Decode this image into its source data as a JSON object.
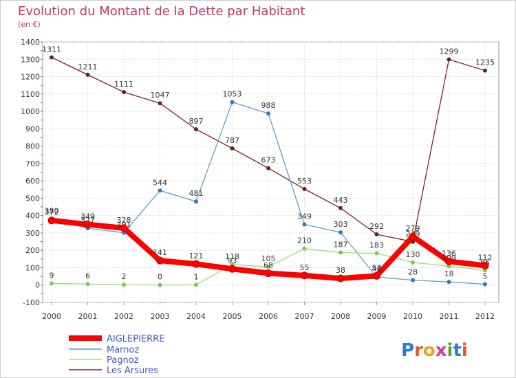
{
  "chart_data": {
    "type": "line",
    "title": "Evolution du Montant de la Dette par Habitant",
    "subtitle": "(en €)",
    "xlabel": "",
    "ylabel": "",
    "x": [
      "2000",
      "2001",
      "2002",
      "2003",
      "2004",
      "2005",
      "2006",
      "2007",
      "2008",
      "2009",
      "2010",
      "2011",
      "2012"
    ],
    "ylim": [
      -100,
      1400
    ],
    "yticks": [
      -100,
      0,
      100,
      200,
      300,
      400,
      500,
      600,
      700,
      800,
      900,
      1000,
      1100,
      1200,
      1300,
      1400
    ],
    "grid": true,
    "legend_position": "bottom-left",
    "series": [
      {
        "name": "AIGLEPIERRE",
        "color": "#ff0000",
        "values": [
          372,
          349,
          328,
          141,
          121,
          93,
          68,
          55,
          38,
          53,
          279,
          136,
          112
        ]
      },
      {
        "name": "Marnoz",
        "color": "#6699cc",
        "values": [
          380,
          327,
          301,
          544,
          481,
          1053,
          988,
          349,
          303,
          46,
          28,
          18,
          5
        ]
      },
      {
        "name": "Pagnoz",
        "color": "#99dd77",
        "values": [
          9,
          6,
          2,
          0,
          1,
          118,
          105,
          210,
          187,
          183,
          130,
          109,
          85
        ]
      },
      {
        "name": "Les Arsures",
        "color": "#772222",
        "values": [
          1311,
          1211,
          1111,
          1047,
          897,
          787,
          673,
          553,
          443,
          292,
          249,
          1299,
          1235
        ]
      }
    ]
  },
  "branding": {
    "logo_text": "Proxiti"
  }
}
